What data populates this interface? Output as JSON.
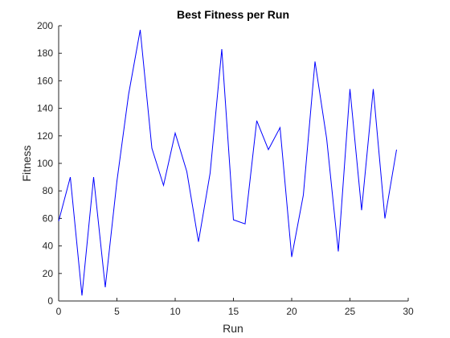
{
  "chart_data": {
    "type": "line",
    "title": "Best Fitness per Run",
    "xlabel": "Run",
    "ylabel": "Fitness",
    "xlim": [
      0,
      30
    ],
    "ylim": [
      0,
      200
    ],
    "xticks": [
      0,
      5,
      10,
      15,
      20,
      25,
      30
    ],
    "yticks": [
      0,
      20,
      40,
      60,
      80,
      100,
      120,
      140,
      160,
      180,
      200
    ],
    "grid": false,
    "x": [
      0,
      1,
      2,
      3,
      4,
      5,
      6,
      7,
      8,
      9,
      10,
      11,
      12,
      13,
      14,
      15,
      16,
      17,
      18,
      19,
      20,
      21,
      22,
      23,
      24,
      25,
      26,
      27,
      28,
      29
    ],
    "series": [
      {
        "color": "#0000ff",
        "values": [
          58,
          90,
          4,
          90,
          10,
          87,
          150,
          197,
          111,
          84,
          122,
          94,
          43,
          93,
          183,
          59,
          56,
          131,
          110,
          126,
          32,
          77,
          174,
          118,
          36,
          154,
          66,
          154,
          60,
          110
        ]
      }
    ]
  }
}
